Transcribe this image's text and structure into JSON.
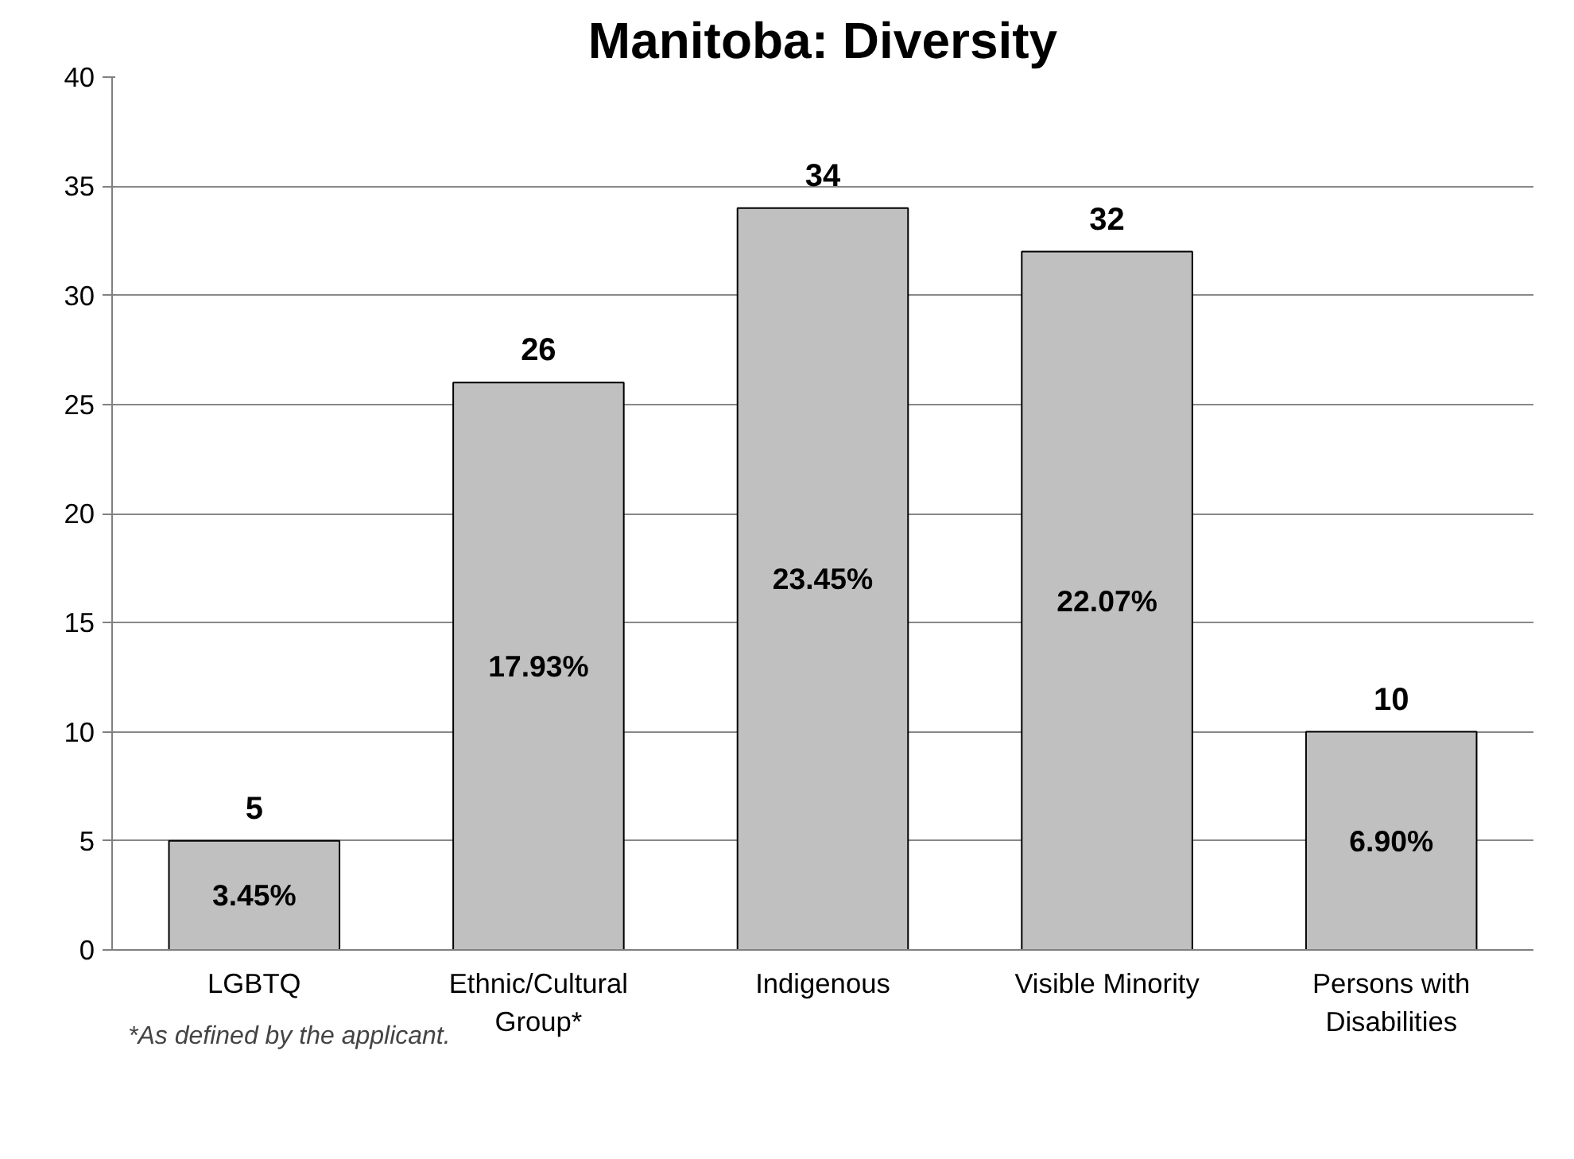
{
  "chart_data": {
    "type": "bar",
    "title": "Manitoba: Diversity",
    "categories": [
      "LGBTQ",
      "Ethnic/Cultural Group*",
      "Indigenous",
      "Visible Minority",
      "Persons with Disabilities"
    ],
    "values": [
      5,
      26,
      34,
      32,
      10
    ],
    "color": "#c0c0c0",
    "data_labels": true,
    "ylim": [
      0,
      40
    ],
    "yticks": [
      0,
      5,
      10,
      15,
      20,
      25,
      30,
      35,
      40
    ],
    "grid": "y",
    "annotations": [
      "3.45%",
      "17.93%",
      "23.45%",
      "22.07%",
      "6.90%",
      "*As defined by the applicant."
    ]
  }
}
